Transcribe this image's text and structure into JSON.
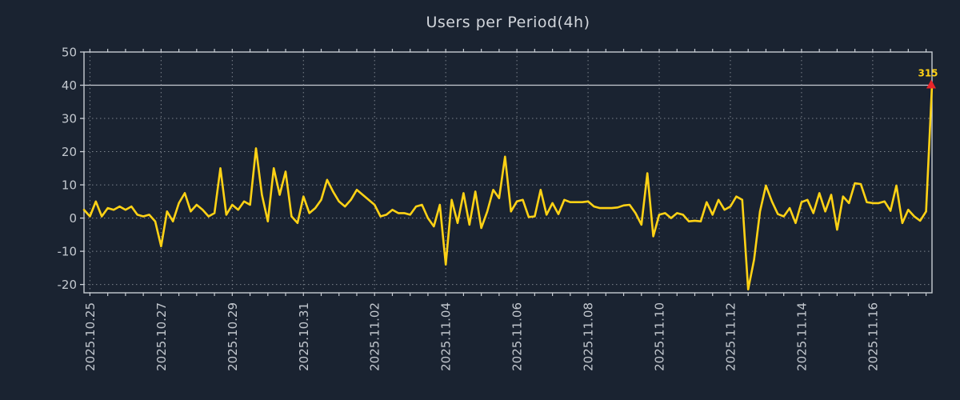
{
  "window": {
    "background_color": "#1a2331"
  },
  "colors": {
    "series": "#ffd215",
    "grid": "#8d939c",
    "spine": "#c7ccd3",
    "tick_label": "#c3c8cf",
    "title": "#d2d6dc",
    "reference_line": "#c7ccd3",
    "marker": "#e8252a",
    "annotation_text": "#ffd215"
  },
  "chart_data": {
    "type": "line",
    "title": "Users per Period(4h)",
    "xlabel": "",
    "ylabel": "",
    "legend_position": "none",
    "grid": "dashed",
    "x_start": "2025.10.24 20:00",
    "x_interval_hours": 4,
    "ylim": [
      -22.5,
      50
    ],
    "y_ticks": [
      50,
      40,
      30,
      20,
      10,
      0,
      -10,
      -20
    ],
    "reference_line_y": 40,
    "x_tick_labels": [
      "2025.10.25",
      "2025.10.27",
      "2025.10.29",
      "2025.10.31",
      "2025.11.02",
      "2025.11.04",
      "2025.11.06",
      "2025.11.08",
      "2025.11.10",
      "2025.11.12",
      "2025.11.14",
      "2025.11.16"
    ],
    "x_tick_indices": [
      1,
      13,
      25,
      37,
      49,
      61,
      73,
      85,
      97,
      109,
      121,
      133
    ],
    "minor_tick_every_points": 3,
    "series": [
      {
        "name": "users",
        "color": "#ffd215",
        "values": [
          2.5,
          0.5,
          5,
          0.5,
          3,
          2.5,
          3.5,
          2.5,
          3.5,
          1,
          0.5,
          1,
          -1,
          -8.5,
          2,
          -1,
          4.5,
          7.5,
          2,
          4,
          2.5,
          0.5,
          1.5,
          15,
          1,
          4,
          2.5,
          5,
          4,
          21,
          7,
          -1,
          15,
          7,
          14,
          0.5,
          -1.5,
          6.5,
          1.5,
          3,
          5.5,
          11.5,
          8,
          5,
          3.5,
          5.5,
          8.5,
          7,
          5.5,
          4,
          0.5,
          1,
          2.5,
          1.5,
          1.5,
          1,
          3.5,
          4,
          0,
          -2.5,
          4,
          -14,
          5.5,
          -1.5,
          7.5,
          -2,
          8,
          -3,
          2,
          8.5,
          6,
          18.5,
          2,
          5,
          5.5,
          0.3,
          0.5,
          8.5,
          1,
          4.5,
          1.2,
          5.5,
          4.8,
          4.8,
          4.8,
          5,
          3.5,
          3,
          3,
          3,
          3.2,
          3.8,
          4,
          1.5,
          -2,
          13.5,
          -5.5,
          1,
          1.5,
          0,
          1.5,
          1,
          -1,
          -0.8,
          -1,
          4.8,
          1,
          5.5,
          2.5,
          3.5,
          6.5,
          5.5,
          -21.5,
          -12.5,
          2,
          9.8,
          5,
          1.2,
          0.5,
          3,
          -1.5,
          4.8,
          5.5,
          1.5,
          7.5,
          2,
          7,
          -3.5,
          6.5,
          4.5,
          10.5,
          10.2,
          4.8,
          4.5,
          4.5,
          5,
          2.2,
          9.8,
          -1.5,
          2.5,
          0.5,
          -0.8,
          2,
          40
        ]
      }
    ],
    "annotation": {
      "text": "315",
      "marker": "triangle-up",
      "marker_color": "#e8252a",
      "text_color": "#ffd215",
      "attached_to": "last-point"
    }
  }
}
